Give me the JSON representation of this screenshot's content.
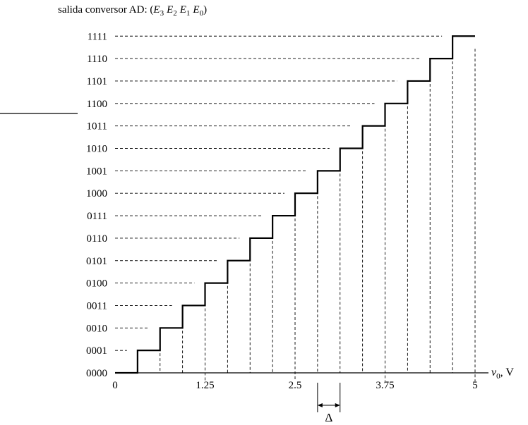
{
  "title": {
    "prefix": "salida conversor AD: ",
    "open_paren": "(",
    "close_paren": ")",
    "terms": [
      {
        "letter": "E",
        "sub": "3"
      },
      {
        "letter": "E",
        "sub": "2"
      },
      {
        "letter": "E",
        "sub": "1"
      },
      {
        "letter": "E",
        "sub": "0"
      }
    ]
  },
  "chart_data": {
    "type": "line",
    "step": true,
    "y_categories": [
      "0000",
      "0001",
      "0010",
      "0011",
      "0100",
      "0101",
      "0110",
      "0111",
      "1000",
      "1001",
      "1010",
      "1011",
      "1100",
      "1101",
      "1110",
      "1111"
    ],
    "x_ticks": [
      {
        "value": 0,
        "label": "0"
      },
      {
        "value": 1.25,
        "label": "1.25"
      },
      {
        "value": 2.5,
        "label": "2.5"
      },
      {
        "value": 3.75,
        "label": "3.75"
      },
      {
        "value": 5,
        "label": "5"
      }
    ],
    "xlim": [
      0,
      5
    ],
    "x_label": {
      "var": "v",
      "sub": "0",
      "unit": ", V"
    },
    "transitions": [
      0.3125,
      0.625,
      0.9375,
      1.25,
      1.5625,
      1.875,
      2.1875,
      2.5,
      2.8125,
      3.125,
      3.4375,
      3.75,
      4.0625,
      4.375,
      4.6875
    ],
    "step_end": 5,
    "delta": {
      "symbol": "Δ",
      "from": 2.8125,
      "to": 3.125
    }
  },
  "colors": {
    "line": "#000000",
    "dash": "#000000"
  }
}
